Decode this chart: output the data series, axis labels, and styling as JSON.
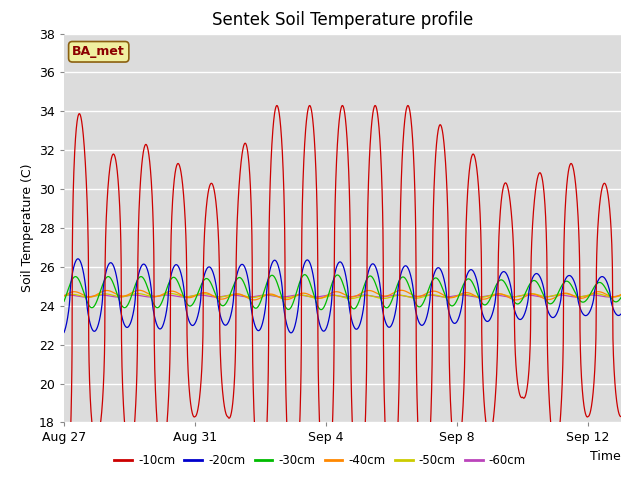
{
  "title": "Sentek Soil Temperature profile",
  "ylabel": "Soil Temperature (C)",
  "xlabel": "Time",
  "ylim": [
    18,
    38
  ],
  "annotation": "BA_met",
  "x_tick_labels": [
    "Aug 27",
    "Aug 31",
    "Sep 4",
    "Sep 8",
    "Sep 12"
  ],
  "x_tick_positions": [
    0,
    4,
    8,
    12,
    16
  ],
  "total_days": 17,
  "bg_color": "#dcdcdc",
  "fig_color": "#ffffff",
  "legend_colors": {
    "-10cm": "#cc0000",
    "-20cm": "#0000cc",
    "-30cm": "#00bb00",
    "-40cm": "#ff8800",
    "-50cm": "#cccc00",
    "-60cm": "#bb44bb"
  }
}
